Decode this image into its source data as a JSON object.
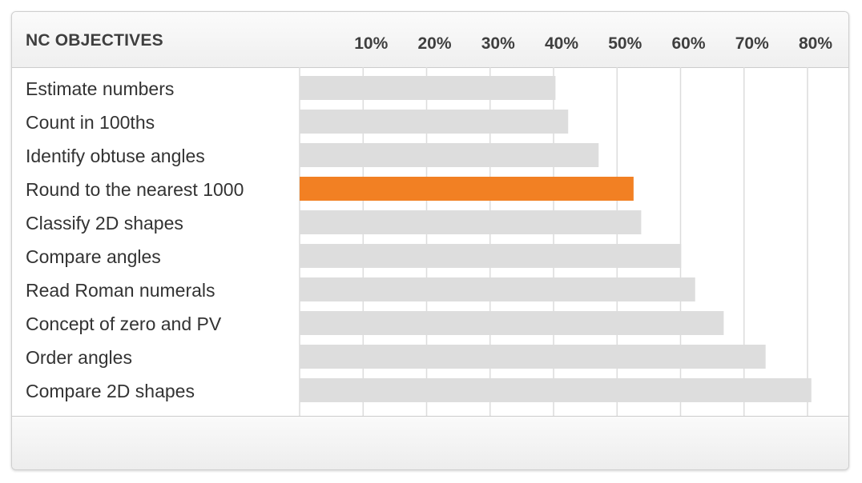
{
  "header": {
    "title": "NC OBJECTIVES"
  },
  "colors": {
    "bar": "#dddddd",
    "highlight": "#f28023",
    "grid": "#dcdcdc"
  },
  "chart_data": {
    "type": "bar",
    "orientation": "horizontal",
    "title": "",
    "xlabel": "",
    "ylabel": "",
    "xlim": [
      0,
      80
    ],
    "ticks": [
      10,
      20,
      30,
      40,
      50,
      60,
      70,
      80
    ],
    "tick_labels": [
      "10%",
      "20%",
      "30%",
      "40%",
      "50%",
      "60%",
      "70%",
      "80%"
    ],
    "categories": [
      "Estimate numbers",
      "Count in 100ths",
      "Identify obtuse angles",
      "Round to the nearest 1000",
      "Classify 2D shapes",
      "Compare angles",
      "Read Roman numerals",
      "Concept of zero and PV",
      "Order angles",
      "Compare 2D shapes"
    ],
    "values": [
      40.3,
      42.3,
      47.1,
      52.6,
      53.8,
      60.1,
      62.3,
      66.8,
      73.4,
      80.6
    ],
    "highlighted": "Round to the nearest 1000",
    "grid": true
  }
}
